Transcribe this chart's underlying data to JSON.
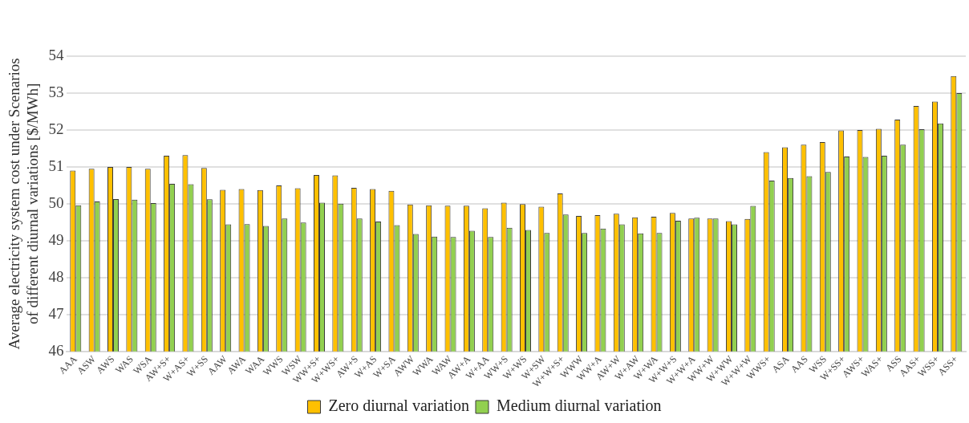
{
  "chart_data": {
    "type": "bar",
    "ylabel": "Average electricity system cost under Scenarios\nof different diurnal variations [$/MWh]",
    "categories": [
      "AAA",
      "ASW",
      "AWS",
      "WAS",
      "WSA",
      "AW+S+",
      "W+AS+",
      "W+SS",
      "AAW",
      "AWA",
      "WAA",
      "WWS",
      "WSW",
      "WW+S+",
      "W+WS+",
      "AW+S",
      "W+AS",
      "W+SA",
      "AWW",
      "WWA",
      "WAW",
      "AW+A",
      "W+AA",
      "WW+S",
      "W+WS",
      "W+SW",
      "W+W+S+",
      "WWW",
      "WW+A",
      "AW+W",
      "W+AW",
      "W+WA",
      "W+W+S",
      "W+W+A",
      "WW+W",
      "W+WW",
      "W+W+W",
      "WWS+",
      "ASA",
      "AAS",
      "WSS",
      "W+SS+",
      "AWS+",
      "WAS+",
      "ASS",
      "AAS+",
      "WSS+",
      "ASS+"
    ],
    "series": [
      {
        "name": "Zero diurnal variation",
        "color": "#ffc000",
        "values": [
          50.9,
          50.95,
          51.0,
          51.0,
          50.95,
          51.3,
          51.32,
          50.97,
          50.38,
          50.4,
          50.37,
          50.5,
          50.42,
          50.78,
          50.77,
          50.43,
          50.4,
          50.35,
          49.98,
          49.96,
          49.95,
          49.95,
          49.88,
          50.03,
          49.99,
          49.92,
          50.28,
          49.67,
          49.69,
          49.73,
          49.63,
          49.65,
          49.75,
          49.6,
          49.6,
          49.53,
          49.59,
          51.4,
          51.53,
          51.6,
          51.67,
          51.99,
          52.0,
          52.03,
          52.28,
          52.65,
          52.77,
          53.46
        ]
      },
      {
        "name": "Medium diurnal variation",
        "color": "#92d050",
        "values": [
          49.96,
          50.06,
          50.13,
          50.11,
          50.02,
          50.54,
          50.53,
          50.12,
          49.44,
          49.45,
          49.4,
          49.6,
          49.49,
          50.03,
          50.0,
          49.6,
          49.52,
          49.42,
          49.18,
          49.11,
          49.1,
          49.27,
          49.1,
          49.35,
          49.29,
          49.21,
          49.71,
          49.21,
          49.33,
          49.44,
          49.2,
          49.21,
          49.54,
          49.62,
          49.6,
          49.44,
          49.94,
          50.63,
          50.7,
          50.75,
          50.86,
          51.28,
          51.27,
          51.3,
          51.6,
          52.02,
          52.18,
          53.0
        ]
      }
    ],
    "ylim": [
      46,
      54
    ],
    "yticks": [
      46,
      47,
      48,
      49,
      50,
      51,
      52,
      53,
      54
    ],
    "grid": "y",
    "legend": "bottom"
  }
}
